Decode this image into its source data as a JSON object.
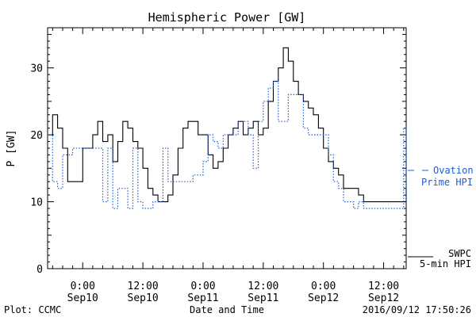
{
  "chart_data": {
    "type": "line",
    "title": "Hemispheric Power [GW]",
    "ylabel": "P [GW]",
    "xlabel": "Date and Time",
    "ylim": [
      0,
      36
    ],
    "yticks": [
      0,
      10,
      20,
      30
    ],
    "xlim": [
      "2016-09-09T17:00",
      "2016-09-12T16:30"
    ],
    "xticks": [
      {
        "t": "2016-09-10T00:00",
        "line1": "0:00",
        "line2": "Sep10"
      },
      {
        "t": "2016-09-10T12:00",
        "line1": "12:00",
        "line2": "Sep10"
      },
      {
        "t": "2016-09-11T00:00",
        "line1": "0:00",
        "line2": "Sep11"
      },
      {
        "t": "2016-09-11T12:00",
        "line1": "12:00",
        "line2": "Sep11"
      },
      {
        "t": "2016-09-12T00:00",
        "line1": "0:00",
        "line2": "Sep12"
      },
      {
        "t": "2016-09-12T12:00",
        "line1": "12:00",
        "line2": "Sep12"
      }
    ],
    "grid": false,
    "legend_position": "right",
    "series": [
      {
        "name": "SWPC 5-min HPI",
        "label_line1": "SWPC",
        "label_line2": "5-min HPI",
        "color": "#000000",
        "style": "solid-step",
        "x": [
          "2016-09-09T17:00",
          "2016-09-09T18:00",
          "2016-09-09T19:00",
          "2016-09-09T20:00",
          "2016-09-09T21:00",
          "2016-09-09T22:00",
          "2016-09-10T00:00",
          "2016-09-10T01:00",
          "2016-09-10T02:00",
          "2016-09-10T03:00",
          "2016-09-10T04:00",
          "2016-09-10T05:00",
          "2016-09-10T06:00",
          "2016-09-10T07:00",
          "2016-09-10T08:00",
          "2016-09-10T09:00",
          "2016-09-10T10:00",
          "2016-09-10T11:00",
          "2016-09-10T12:00",
          "2016-09-10T13:00",
          "2016-09-10T14:00",
          "2016-09-10T15:00",
          "2016-09-10T16:00",
          "2016-09-10T17:00",
          "2016-09-10T18:00",
          "2016-09-10T19:00",
          "2016-09-10T20:00",
          "2016-09-10T21:00",
          "2016-09-10T22:00",
          "2016-09-10T23:00",
          "2016-09-11T00:00",
          "2016-09-11T01:00",
          "2016-09-11T02:00",
          "2016-09-11T03:00",
          "2016-09-11T04:00",
          "2016-09-11T05:00",
          "2016-09-11T06:00",
          "2016-09-11T07:00",
          "2016-09-11T08:00",
          "2016-09-11T09:00",
          "2016-09-11T10:00",
          "2016-09-11T11:00",
          "2016-09-11T12:00",
          "2016-09-11T13:00",
          "2016-09-11T14:00",
          "2016-09-11T15:00",
          "2016-09-11T16:00",
          "2016-09-11T17:00",
          "2016-09-11T18:00",
          "2016-09-11T19:00",
          "2016-09-11T20:00",
          "2016-09-11T21:00",
          "2016-09-11T22:00",
          "2016-09-11T23:00",
          "2016-09-12T00:00",
          "2016-09-12T01:00",
          "2016-09-12T02:00",
          "2016-09-12T03:00",
          "2016-09-12T04:00",
          "2016-09-12T05:00",
          "2016-09-12T06:00",
          "2016-09-12T07:00",
          "2016-09-12T08:00",
          "2016-09-12T09:00",
          "2016-09-12T10:00",
          "2016-09-12T11:00",
          "2016-09-12T12:00",
          "2016-09-12T13:00",
          "2016-09-12T14:00",
          "2016-09-12T15:00",
          "2016-09-12T16:00",
          "2016-09-12T16:30"
        ],
        "values": [
          20,
          23,
          21,
          18,
          13,
          13,
          18,
          18,
          20,
          22,
          19,
          20,
          16,
          19,
          22,
          21,
          19,
          18,
          15,
          12,
          11,
          10,
          10,
          11,
          14,
          18,
          21,
          22,
          22,
          20,
          20,
          17,
          15,
          16,
          18,
          20,
          21,
          22,
          20,
          21,
          22,
          20,
          21,
          25,
          28,
          30,
          33,
          31,
          28,
          26,
          25,
          24,
          23,
          21,
          18,
          16,
          15,
          14,
          12,
          12,
          12,
          11,
          10,
          10,
          10,
          10,
          10,
          10,
          10,
          10,
          10,
          12
        ]
      },
      {
        "name": "Ovation Prime HPI",
        "label_line1": "Ovation",
        "label_line2": "Prime HPI",
        "color": "#1f5fd6",
        "style": "dotted-step",
        "x": [
          "2016-09-09T17:00",
          "2016-09-09T18:00",
          "2016-09-09T19:00",
          "2016-09-09T20:00",
          "2016-09-09T21:00",
          "2016-09-09T22:00",
          "2016-09-09T23:00",
          "2016-09-10T00:00",
          "2016-09-10T01:00",
          "2016-09-10T02:00",
          "2016-09-10T03:00",
          "2016-09-10T04:00",
          "2016-09-10T05:00",
          "2016-09-10T06:00",
          "2016-09-10T07:00",
          "2016-09-10T08:00",
          "2016-09-10T09:00",
          "2016-09-10T10:00",
          "2016-09-10T11:00",
          "2016-09-10T12:00",
          "2016-09-10T13:00",
          "2016-09-10T14:00",
          "2016-09-10T15:00",
          "2016-09-10T16:00",
          "2016-09-10T17:00",
          "2016-09-10T18:00",
          "2016-09-10T19:00",
          "2016-09-10T20:00",
          "2016-09-10T21:00",
          "2016-09-10T22:00",
          "2016-09-10T23:00",
          "2016-09-11T00:00",
          "2016-09-11T01:00",
          "2016-09-11T02:00",
          "2016-09-11T03:00",
          "2016-09-11T04:00",
          "2016-09-11T05:00",
          "2016-09-11T06:00",
          "2016-09-11T07:00",
          "2016-09-11T08:00",
          "2016-09-11T09:00",
          "2016-09-11T10:00",
          "2016-09-11T11:00",
          "2016-09-11T12:00",
          "2016-09-11T13:00",
          "2016-09-11T14:00",
          "2016-09-11T15:00",
          "2016-09-11T16:00",
          "2016-09-11T17:00",
          "2016-09-11T18:00",
          "2016-09-11T19:00",
          "2016-09-11T20:00",
          "2016-09-11T21:00",
          "2016-09-11T22:00",
          "2016-09-11T23:00",
          "2016-09-12T00:00",
          "2016-09-12T01:00",
          "2016-09-12T02:00",
          "2016-09-12T03:00",
          "2016-09-12T04:00",
          "2016-09-12T05:00",
          "2016-09-12T06:00",
          "2016-09-12T07:00",
          "2016-09-12T08:00",
          "2016-09-12T09:00",
          "2016-09-12T10:00",
          "2016-09-12T11:00",
          "2016-09-12T12:00",
          "2016-09-12T13:00",
          "2016-09-12T14:00",
          "2016-09-12T15:00",
          "2016-09-12T16:00",
          "2016-09-12T16:30"
        ],
        "values": [
          20,
          13,
          12,
          17,
          17,
          18,
          18,
          18,
          18,
          18,
          18,
          10,
          18,
          9,
          12,
          12,
          9,
          18,
          10,
          9,
          9,
          10,
          10,
          18,
          13,
          13,
          13,
          13,
          13,
          14,
          14,
          16,
          20,
          19,
          18,
          20,
          20,
          20,
          22,
          22,
          20,
          15,
          22,
          25,
          27,
          28,
          22,
          22,
          26,
          26,
          26,
          21,
          20,
          20,
          20,
          20,
          17,
          13,
          12,
          10,
          10,
          9,
          10,
          9,
          9,
          9,
          9,
          9,
          9,
          9,
          9,
          21,
          10
        ]
      }
    ]
  },
  "footer": {
    "left": "Plot: CCMC",
    "center": "Date and Time",
    "right": "2016/09/12 17:50:26"
  }
}
